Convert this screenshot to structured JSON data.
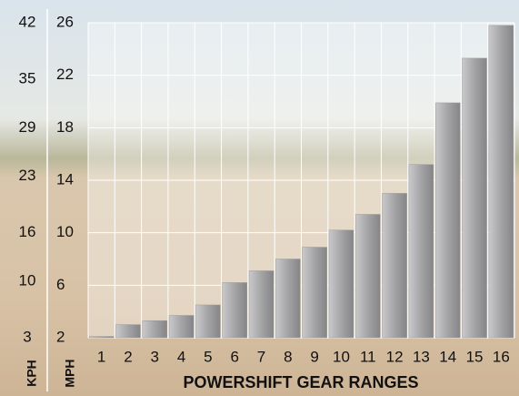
{
  "chart_data": {
    "type": "bar",
    "x_label": "POWERSHIFT GEAR RANGES",
    "y_label": "MPH",
    "y2_label": "KPH",
    "categories": [
      "1",
      "2",
      "3",
      "4",
      "5",
      "6",
      "7",
      "8",
      "9",
      "10",
      "11",
      "12",
      "13",
      "14",
      "15",
      "16"
    ],
    "series": [
      {
        "name": "MPH",
        "color": "#9a9a9c",
        "values": [
          2.1,
          3.0,
          3.3,
          3.7,
          4.5,
          6.2,
          7.1,
          8.0,
          8.9,
          10.2,
          11.4,
          13.0,
          15.2,
          19.9,
          23.3,
          25.8
        ]
      }
    ],
    "ylim": [
      2,
      26
    ],
    "yticks": [
      2,
      6,
      10,
      14,
      18,
      22,
      26
    ],
    "y2lim": [
      3,
      42
    ],
    "y2ticks": [
      3,
      10,
      16,
      23,
      29,
      35,
      42
    ],
    "grid": true
  }
}
